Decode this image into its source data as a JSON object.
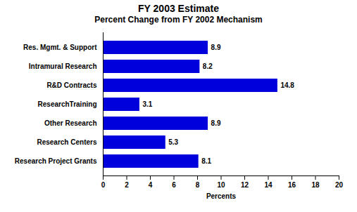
{
  "chart_data": {
    "type": "bar",
    "orientation": "horizontal",
    "title": "FY 2003 Estimate",
    "subtitle": "Percent Change from FY 2002 Mechanism",
    "categories": [
      "Research Project Grants",
      "Research Centers",
      "Other Research",
      "ResearchTraining",
      "R&D Contracts",
      "Intramural Research",
      "Res. Mgmt. & Support"
    ],
    "values": [
      8.1,
      5.3,
      8.9,
      3.1,
      14.8,
      8.2,
      8.9
    ],
    "color": "#0000DD",
    "xlabel": "Percents",
    "xlim": [
      0,
      20
    ],
    "xticks": [
      0,
      2,
      4,
      6,
      8,
      10,
      12,
      14,
      16,
      18,
      20
    ],
    "data_labels": true,
    "grid": false
  }
}
